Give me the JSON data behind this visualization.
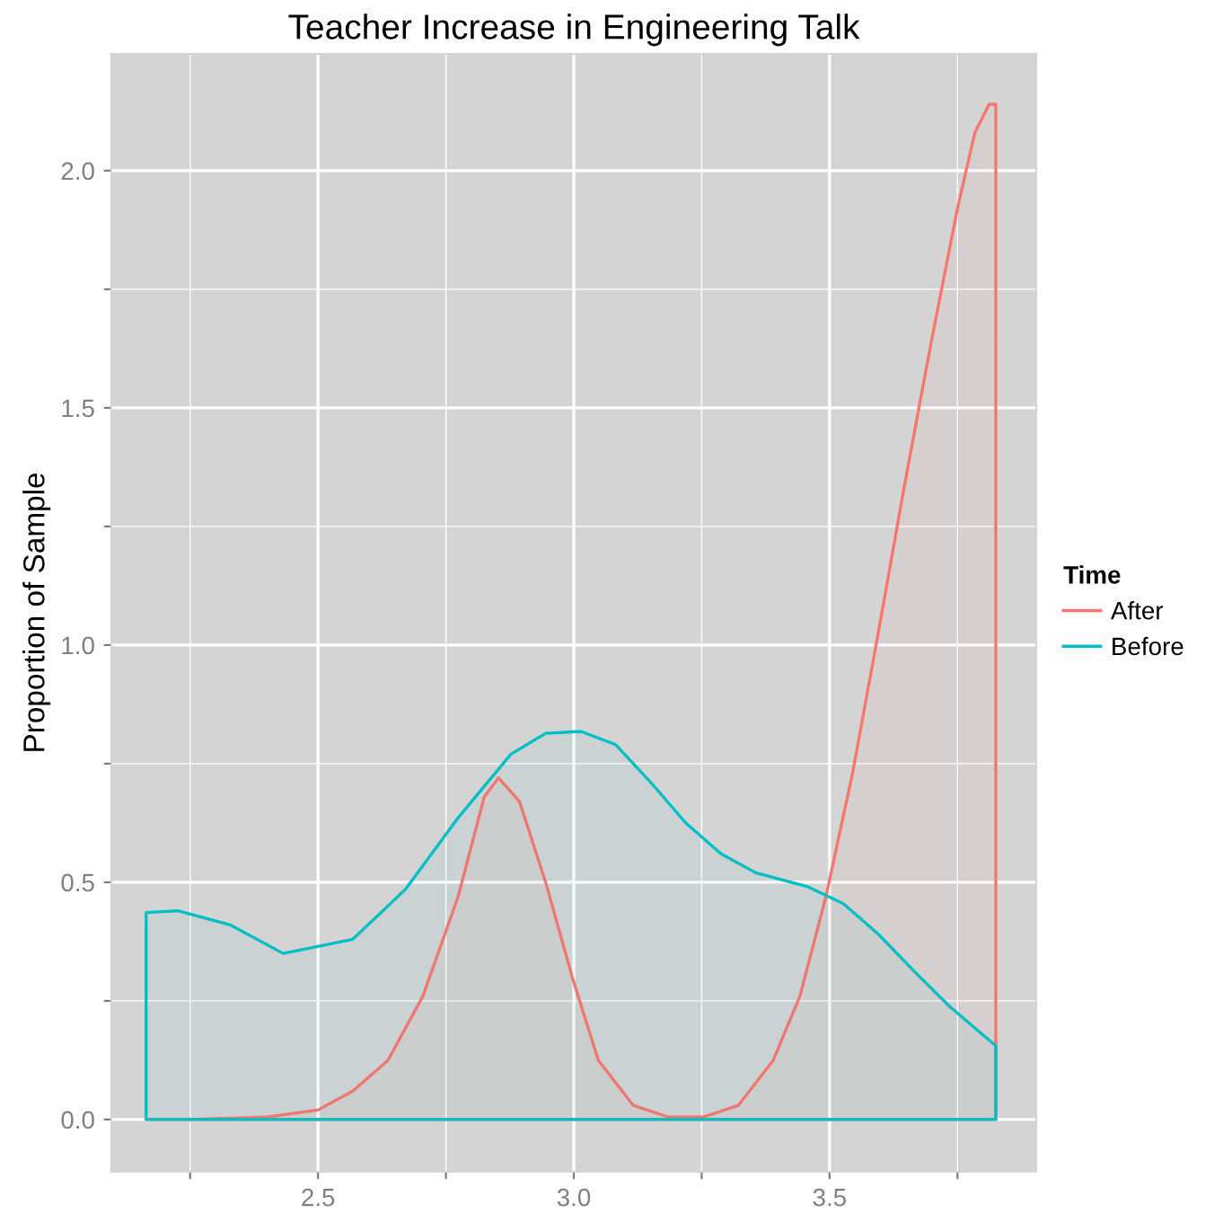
{
  "chart_data": {
    "type": "area",
    "title": "Teacher Increase in Engineering Talk",
    "ylabel": "Proportion of Sample",
    "legend_title": "Time",
    "legend": "right",
    "grid": true,
    "xlim": [
      2.096,
      3.904
    ],
    "ylim": [
      -0.11,
      2.246
    ],
    "xticks": [
      {
        "value": 2.25,
        "label": null
      },
      2.5,
      {
        "value": 2.75,
        "label": null
      },
      {
        "value": 3.0,
        "label": "3.0"
      },
      {
        "value": 3.25,
        "label": null
      },
      3.5,
      {
        "value": 3.75,
        "label": null
      }
    ],
    "yticks": [
      {
        "value": 0,
        "label": "0.0"
      },
      {
        "value": 0.25,
        "label": null
      },
      0.5,
      {
        "value": 0.75,
        "label": null
      },
      {
        "value": 1,
        "label": "1.0"
      },
      {
        "value": 1.25,
        "label": null
      },
      1.5,
      {
        "value": 1.75,
        "label": null
      },
      {
        "value": 2,
        "label": "2.0"
      }
    ],
    "series": [
      {
        "name": "After",
        "color": "#f8766d",
        "x": [
          2.164,
          2.25,
          2.397,
          2.5,
          2.568,
          2.637,
          2.705,
          2.774,
          2.825,
          2.853,
          2.894,
          2.945,
          2.997,
          3.048,
          3.116,
          3.185,
          3.253,
          3.322,
          3.39,
          3.442,
          3.493,
          3.545,
          3.596,
          3.647,
          3.699,
          3.75,
          3.784,
          3.812,
          3.825
        ],
        "values": [
          0,
          0,
          0.005,
          0.02,
          0.06,
          0.125,
          0.26,
          0.47,
          0.68,
          0.72,
          0.67,
          0.5,
          0.3,
          0.125,
          0.03,
          0.005,
          0.005,
          0.03,
          0.125,
          0.26,
          0.47,
          0.73,
          1.03,
          1.34,
          1.64,
          1.92,
          2.08,
          2.14,
          2.14
        ]
      },
      {
        "name": "Before",
        "color": "#00bfc4",
        "x": [
          2.164,
          2.226,
          2.329,
          2.432,
          2.568,
          2.671,
          2.774,
          2.877,
          2.945,
          3.014,
          3.082,
          3.151,
          3.219,
          3.288,
          3.356,
          3.459,
          3.527,
          3.596,
          3.664,
          3.733,
          3.825
        ],
        "values": [
          0.436,
          0.44,
          0.41,
          0.35,
          0.38,
          0.485,
          0.636,
          0.77,
          0.814,
          0.818,
          0.79,
          0.71,
          0.625,
          0.56,
          0.52,
          0.49,
          0.455,
          0.39,
          0.314,
          0.24,
          0.155
        ]
      }
    ]
  }
}
